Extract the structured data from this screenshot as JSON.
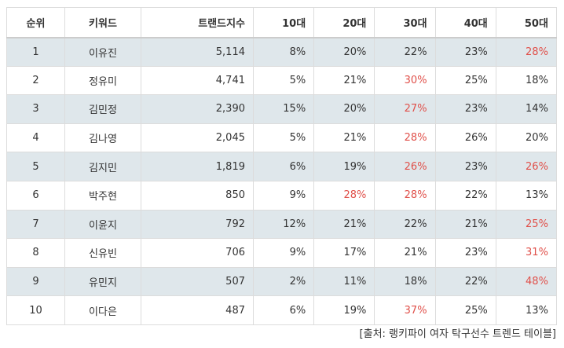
{
  "table": {
    "headers": [
      "순위",
      "키워드",
      "트랜드지수",
      "10대",
      "20대",
      "30대",
      "40대",
      "50대"
    ],
    "highlight_color": "#e0504a",
    "shade_color": "#dfe7eb",
    "rows": [
      {
        "rank": "1",
        "keyword": "이유진",
        "index": "5,114",
        "ages": [
          {
            "v": "8%",
            "hi": false
          },
          {
            "v": "20%",
            "hi": false
          },
          {
            "v": "22%",
            "hi": false
          },
          {
            "v": "23%",
            "hi": false
          },
          {
            "v": "28%",
            "hi": true
          }
        ]
      },
      {
        "rank": "2",
        "keyword": "정유미",
        "index": "4,741",
        "ages": [
          {
            "v": "5%",
            "hi": false
          },
          {
            "v": "21%",
            "hi": false
          },
          {
            "v": "30%",
            "hi": true
          },
          {
            "v": "25%",
            "hi": false
          },
          {
            "v": "18%",
            "hi": false
          }
        ]
      },
      {
        "rank": "3",
        "keyword": "김민정",
        "index": "2,390",
        "ages": [
          {
            "v": "15%",
            "hi": false
          },
          {
            "v": "20%",
            "hi": false
          },
          {
            "v": "27%",
            "hi": true
          },
          {
            "v": "23%",
            "hi": false
          },
          {
            "v": "14%",
            "hi": false
          }
        ]
      },
      {
        "rank": "4",
        "keyword": "김나영",
        "index": "2,045",
        "ages": [
          {
            "v": "5%",
            "hi": false
          },
          {
            "v": "21%",
            "hi": false
          },
          {
            "v": "28%",
            "hi": true
          },
          {
            "v": "26%",
            "hi": false
          },
          {
            "v": "20%",
            "hi": false
          }
        ]
      },
      {
        "rank": "5",
        "keyword": "김지민",
        "index": "1,819",
        "ages": [
          {
            "v": "6%",
            "hi": false
          },
          {
            "v": "19%",
            "hi": false
          },
          {
            "v": "26%",
            "hi": true
          },
          {
            "v": "23%",
            "hi": false
          },
          {
            "v": "26%",
            "hi": true
          }
        ]
      },
      {
        "rank": "6",
        "keyword": "박주현",
        "index": "850",
        "ages": [
          {
            "v": "9%",
            "hi": false
          },
          {
            "v": "28%",
            "hi": true
          },
          {
            "v": "28%",
            "hi": true
          },
          {
            "v": "22%",
            "hi": false
          },
          {
            "v": "13%",
            "hi": false
          }
        ]
      },
      {
        "rank": "7",
        "keyword": "이윤지",
        "index": "792",
        "ages": [
          {
            "v": "12%",
            "hi": false
          },
          {
            "v": "21%",
            "hi": false
          },
          {
            "v": "22%",
            "hi": false
          },
          {
            "v": "21%",
            "hi": false
          },
          {
            "v": "25%",
            "hi": true
          }
        ]
      },
      {
        "rank": "8",
        "keyword": "신유빈",
        "index": "706",
        "ages": [
          {
            "v": "9%",
            "hi": false
          },
          {
            "v": "17%",
            "hi": false
          },
          {
            "v": "21%",
            "hi": false
          },
          {
            "v": "23%",
            "hi": false
          },
          {
            "v": "31%",
            "hi": true
          }
        ]
      },
      {
        "rank": "9",
        "keyword": "유민지",
        "index": "507",
        "ages": [
          {
            "v": "2%",
            "hi": false
          },
          {
            "v": "11%",
            "hi": false
          },
          {
            "v": "18%",
            "hi": false
          },
          {
            "v": "22%",
            "hi": false
          },
          {
            "v": "48%",
            "hi": true
          }
        ]
      },
      {
        "rank": "10",
        "keyword": "이다은",
        "index": "487",
        "ages": [
          {
            "v": "6%",
            "hi": false
          },
          {
            "v": "19%",
            "hi": false
          },
          {
            "v": "37%",
            "hi": true
          },
          {
            "v": "25%",
            "hi": false
          },
          {
            "v": "13%",
            "hi": false
          }
        ]
      }
    ]
  },
  "source": "[출처: 랭키파이 여자 탁구선수 트렌드 테이블]"
}
